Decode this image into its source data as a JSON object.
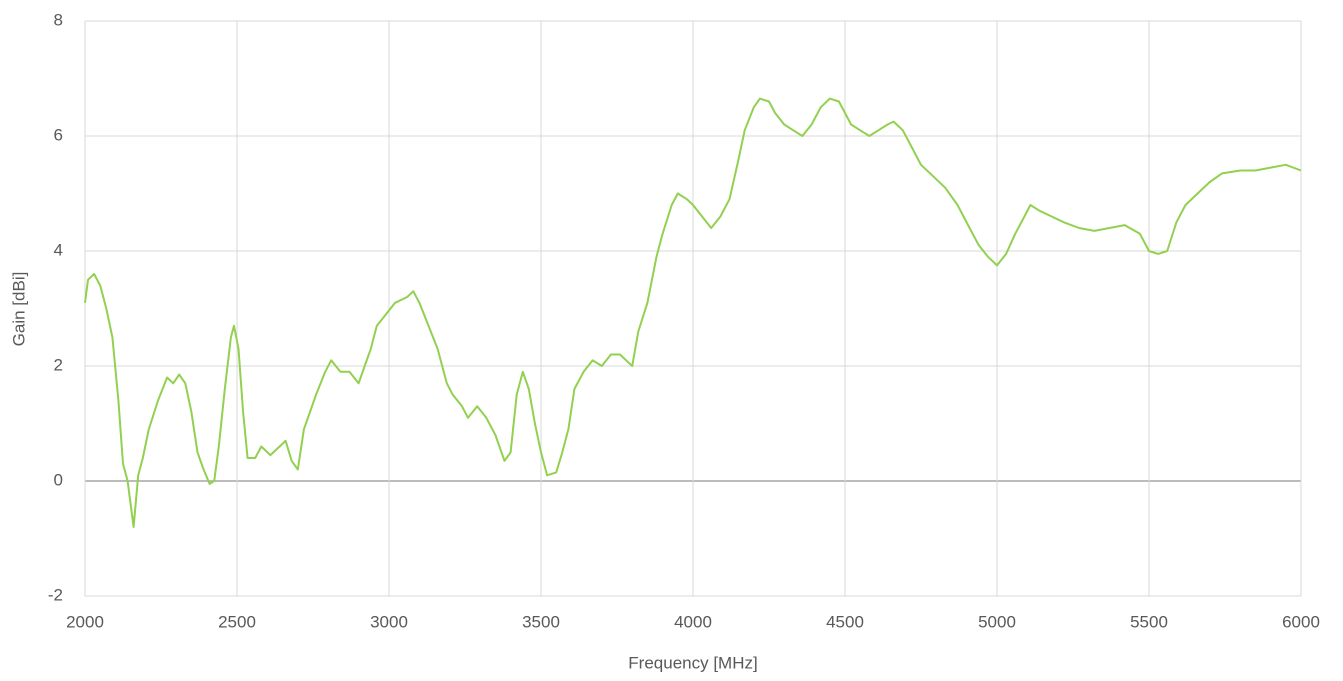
{
  "chart_data": {
    "type": "line",
    "x_label": "Frequency [MHz]",
    "y_label": "Gain [dBi]",
    "color": "#92d050",
    "grid": true,
    "xlim": [
      2000,
      6000
    ],
    "xticks": [
      2000,
      2500,
      3000,
      3500,
      4000,
      4500,
      5000,
      5500,
      6000
    ],
    "ylim": [
      -2,
      8
    ],
    "yticks": [
      -2,
      0,
      2,
      4,
      6,
      8
    ],
    "x": [
      2000,
      2010,
      2030,
      2050,
      2070,
      2090,
      2110,
      2125,
      2140,
      2160,
      2175,
      2190,
      2210,
      2240,
      2270,
      2290,
      2310,
      2330,
      2350,
      2370,
      2390,
      2410,
      2425,
      2440,
      2460,
      2480,
      2490,
      2505,
      2520,
      2535,
      2560,
      2580,
      2610,
      2640,
      2660,
      2680,
      2700,
      2720,
      2740,
      2760,
      2790,
      2810,
      2840,
      2870,
      2900,
      2920,
      2940,
      2960,
      2990,
      3020,
      3060,
      3080,
      3100,
      3130,
      3160,
      3190,
      3210,
      3240,
      3260,
      3290,
      3320,
      3350,
      3380,
      3400,
      3420,
      3440,
      3460,
      3480,
      3500,
      3520,
      3550,
      3570,
      3590,
      3610,
      3640,
      3670,
      3700,
      3730,
      3760,
      3780,
      3800,
      3820,
      3850,
      3880,
      3900,
      3930,
      3950,
      3980,
      4000,
      4030,
      4060,
      4090,
      4120,
      4150,
      4170,
      4200,
      4220,
      4250,
      4270,
      4300,
      4330,
      4360,
      4390,
      4420,
      4450,
      4480,
      4500,
      4520,
      4550,
      4580,
      4610,
      4640,
      4660,
      4690,
      4720,
      4750,
      4790,
      4830,
      4870,
      4910,
      4940,
      4970,
      5000,
      5030,
      5060,
      5090,
      5110,
      5140,
      5180,
      5220,
      5270,
      5320,
      5370,
      5420,
      5470,
      5500,
      5530,
      5560,
      5590,
      5620,
      5660,
      5700,
      5740,
      5800,
      5850,
      5900,
      5950,
      6000
    ],
    "values": [
      3.1,
      3.5,
      3.6,
      3.4,
      3.0,
      2.5,
      1.4,
      0.3,
      0.0,
      -0.8,
      0.1,
      0.4,
      0.9,
      1.4,
      1.8,
      1.7,
      1.85,
      1.7,
      1.2,
      0.5,
      0.2,
      -0.05,
      0.0,
      0.6,
      1.6,
      2.5,
      2.7,
      2.3,
      1.2,
      0.4,
      0.4,
      0.6,
      0.45,
      0.6,
      0.7,
      0.35,
      0.2,
      0.9,
      1.2,
      1.5,
      1.9,
      2.1,
      1.9,
      1.9,
      1.7,
      2.0,
      2.3,
      2.7,
      2.9,
      3.1,
      3.2,
      3.3,
      3.1,
      2.7,
      2.3,
      1.7,
      1.5,
      1.3,
      1.1,
      1.3,
      1.1,
      0.8,
      0.35,
      0.5,
      1.5,
      1.9,
      1.6,
      1.0,
      0.5,
      0.1,
      0.15,
      0.5,
      0.9,
      1.6,
      1.9,
      2.1,
      2.0,
      2.2,
      2.2,
      2.1,
      2.0,
      2.6,
      3.1,
      3.9,
      4.3,
      4.8,
      5.0,
      4.9,
      4.8,
      4.6,
      4.4,
      4.6,
      4.9,
      5.6,
      6.1,
      6.5,
      6.65,
      6.6,
      6.4,
      6.2,
      6.1,
      6.0,
      6.2,
      6.5,
      6.65,
      6.6,
      6.4,
      6.2,
      6.1,
      6.0,
      6.1,
      6.2,
      6.25,
      6.1,
      5.8,
      5.5,
      5.3,
      5.1,
      4.8,
      4.4,
      4.1,
      3.9,
      3.75,
      3.95,
      4.3,
      4.6,
      4.8,
      4.7,
      4.6,
      4.5,
      4.4,
      4.35,
      4.4,
      4.45,
      4.3,
      4.0,
      3.95,
      4.0,
      4.5,
      4.8,
      5.0,
      5.2,
      5.35,
      5.4,
      5.4,
      5.45,
      5.5,
      5.4
    ]
  }
}
